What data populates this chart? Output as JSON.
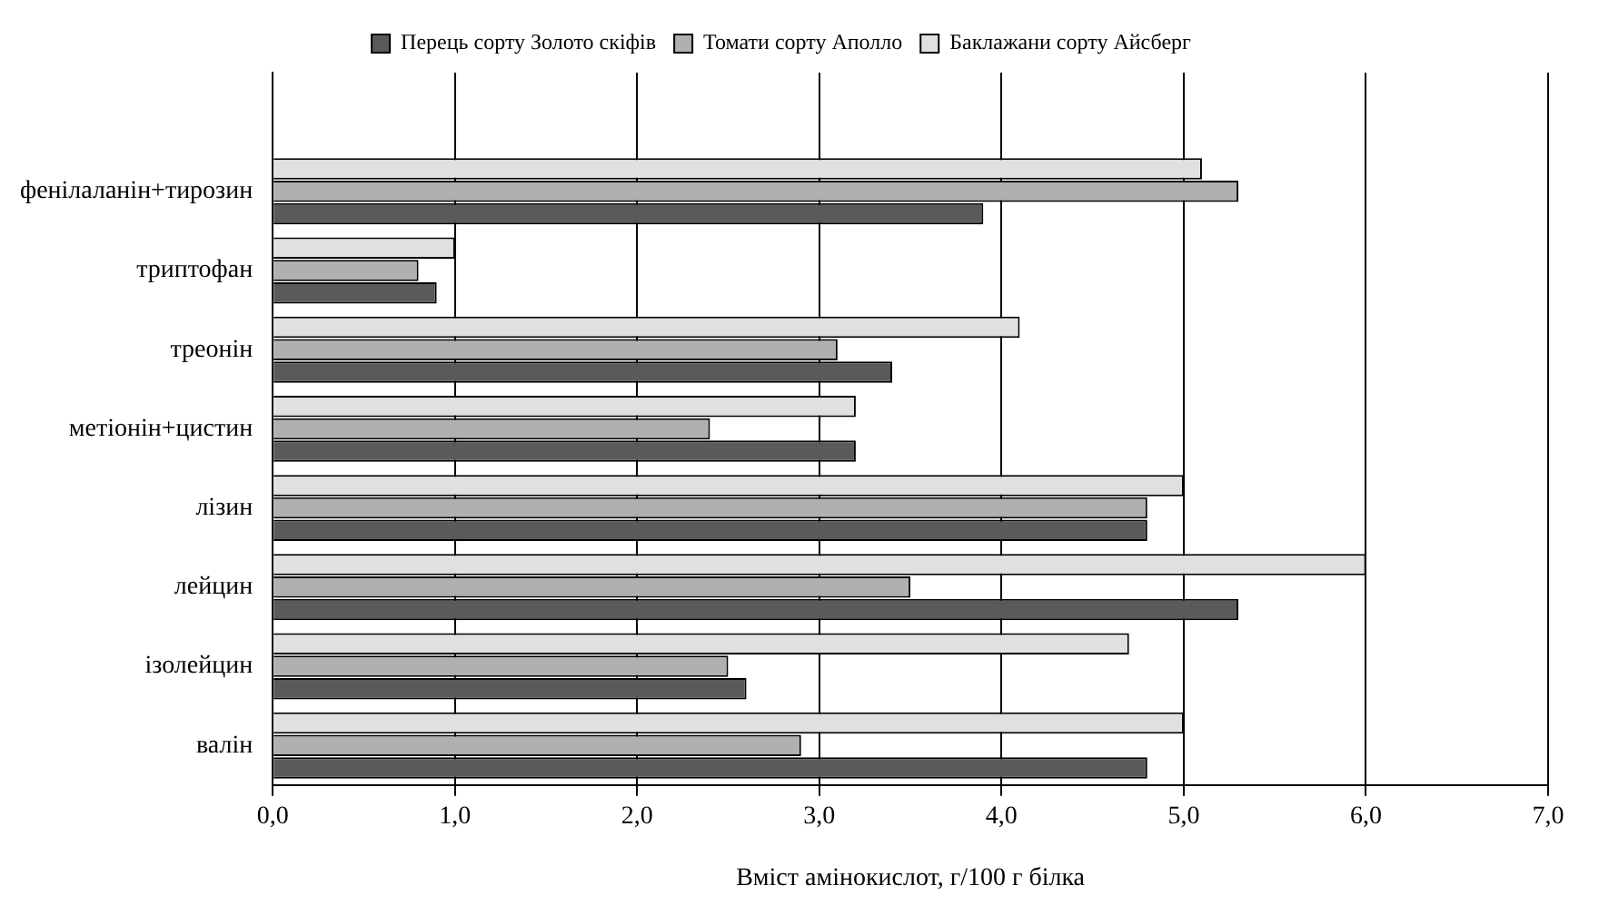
{
  "chart_data": {
    "type": "bar",
    "orientation": "horizontal",
    "xlabel": "Вміст амінокислот, г/100 г білка",
    "categories": [
      null,
      "фенілаланін+тирозин",
      "триптофан",
      "треонін",
      "метіонін+цистин",
      "лізин",
      "лейцин",
      "ізолейцин",
      "валін"
    ],
    "series": [
      {
        "name": "Перець сорту Золото скіфів",
        "color": "#5a5a5a",
        "values": [
          null,
          3.9,
          0.9,
          3.4,
          3.2,
          4.8,
          5.3,
          2.6,
          4.8
        ]
      },
      {
        "name": "Томати сорту Аполло",
        "color": "#b0b0b0",
        "values": [
          null,
          5.3,
          0.8,
          3.1,
          2.4,
          4.8,
          3.5,
          2.5,
          2.9
        ]
      },
      {
        "name": "Баклажани сорту Айсберг",
        "color": "#e0e0e0",
        "values": [
          null,
          5.1,
          1.0,
          4.1,
          3.2,
          5.0,
          6.0,
          4.7,
          5.0
        ]
      }
    ],
    "xlim": [
      0,
      7
    ],
    "xticks": [
      {
        "value": 0,
        "label": "0,0"
      },
      {
        "value": 1,
        "label": "1,0"
      },
      {
        "value": 2,
        "label": "2,0"
      },
      {
        "value": 3,
        "label": "3,0"
      },
      {
        "value": 4,
        "label": "4,0"
      },
      {
        "value": 5,
        "label": "5,0"
      },
      {
        "value": 6,
        "label": "6,0"
      },
      {
        "value": 7,
        "label": "7,0"
      }
    ],
    "grid": "x",
    "legend": "top"
  }
}
